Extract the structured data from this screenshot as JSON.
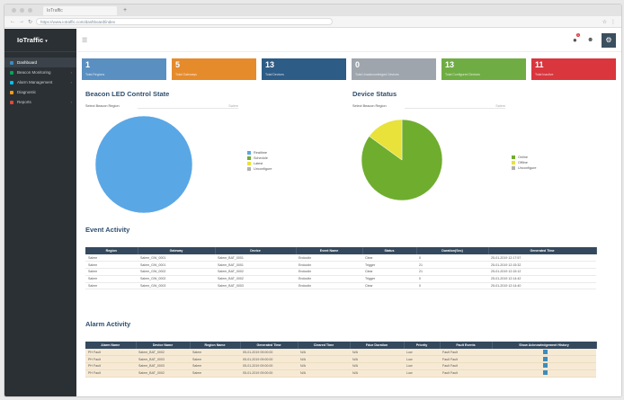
{
  "browser": {
    "tab_title": "IoTraffic",
    "url": "https://www.iotraffic.com/dashboard/index"
  },
  "sidebar": {
    "brand": "IoTraffic",
    "items": [
      {
        "label": "Dashboard",
        "icon": "dashboard-icon",
        "color": "#3c8dbc"
      },
      {
        "label": "Beacon Monitoring",
        "icon": "beacon-icon",
        "color": "#00a65a"
      },
      {
        "label": "Alarm Management",
        "icon": "alarm-icon",
        "color": "#00c0ef"
      },
      {
        "label": "Diagnostic",
        "icon": "diagnostic-icon",
        "color": "#f39c12"
      },
      {
        "label": "Reports",
        "icon": "report-icon",
        "color": "#dd4b39"
      }
    ]
  },
  "topbar": {
    "notification_count": "1"
  },
  "stats": [
    {
      "value": "1",
      "label": "Total Regions",
      "color": "#5a8fc1"
    },
    {
      "value": "5",
      "label": "Total Gateways",
      "color": "#e58b2c"
    },
    {
      "value": "13",
      "label": "Total Devices",
      "color": "#2d5c86"
    },
    {
      "value": "0",
      "label": "Total Unacknowledged Devices",
      "color": "#9ea5ad"
    },
    {
      "value": "13",
      "label": "Total Configured Devices",
      "color": "#6fad44"
    },
    {
      "value": "11",
      "label": "Total Inactive",
      "color": "#d9363e"
    }
  ],
  "beacon_chart": {
    "title": "Beacon LED Control State",
    "filter_label": "Select Beacon Region",
    "filter_value": "Salem",
    "legend": [
      {
        "label": "Realtime",
        "color": "#5aa7e6"
      },
      {
        "label": "Schedule",
        "color": "#6fad2f"
      },
      {
        "label": "Latest",
        "color": "#e8e23a"
      },
      {
        "label": "Unconfigure",
        "color": "#b0b0b0"
      }
    ]
  },
  "device_chart": {
    "title": "Device Status",
    "filter_label": "Select Beacon Region",
    "filter_value": "Salem",
    "legend": [
      {
        "label": "Online",
        "color": "#6fad2f"
      },
      {
        "label": "Offline",
        "color": "#e8e23a"
      },
      {
        "label": "Unconfigure",
        "color": "#b0b0b0"
      }
    ]
  },
  "chart_data": [
    {
      "type": "pie",
      "title": "Beacon LED Control State",
      "categories": [
        "Realtime",
        "Schedule",
        "Latest",
        "Unconfigure"
      ],
      "values": [
        100,
        0,
        0,
        0
      ]
    },
    {
      "type": "pie",
      "title": "Device Status",
      "categories": [
        "Online",
        "Offline",
        "Unconfigure"
      ],
      "values": [
        85,
        15,
        0
      ]
    }
  ],
  "event_activity": {
    "title": "Event Activity",
    "columns": [
      "Region",
      "Gateway",
      "Device",
      "Event Name",
      "Status",
      "Duration(Sec)",
      "Generated Time"
    ],
    "rows": [
      [
        "Salem",
        "Salem_GW_0001",
        "Salem_BAT_0001",
        "Endoutin",
        "Clear",
        "0",
        "25-01-2019 12:17:57"
      ],
      [
        "Salem",
        "Salem_GW_0001",
        "Salem_BAT_0001",
        "Endoutin",
        "Trigger",
        "21",
        "25-01-2019 12:15:32"
      ],
      [
        "Salem",
        "Salem_GW_0002",
        "Salem_BAT_0002",
        "Endoutin",
        "Clear",
        "21",
        "25-01-2019 12:15:12"
      ],
      [
        "Salem",
        "Salem_GW_0002",
        "Salem_BAT_0002",
        "Endoutin",
        "Trigger",
        "0",
        "25-01-2019 12:14:42"
      ],
      [
        "Salem",
        "Salem_GW_0003",
        "Salem_BAT_0003",
        "Endoutin",
        "Clear",
        "0",
        "25-01-2019 12:14:40"
      ]
    ]
  },
  "alarm_activity": {
    "title": "Alarm Activity",
    "columns": [
      "Alarm Name",
      "Device Name",
      "Region Name",
      "Generated Time",
      "Cleared Time",
      "Fdue Duration",
      "Priority",
      "Fault Events",
      "Show Acknowledgement History"
    ],
    "rows": [
      [
        "PH Fault",
        "Salem_BAT_0002",
        "Salem",
        "05-01-2019 09:00:00",
        "N/A",
        "N/A",
        "Low",
        "Fault Fault"
      ],
      [
        "PH Fault",
        "Salem_BAT_0003",
        "Salem",
        "05-01-2019 09:00:00",
        "N/A",
        "N/A",
        "Low",
        "Fault Fault"
      ],
      [
        "PH Fault",
        "Salem_BAT_0003",
        "Salem",
        "05-01-2019 09:00:00",
        "N/A",
        "N/A",
        "Low",
        "Fault Fault"
      ],
      [
        "PH Fault",
        "Salem_BAT_0002",
        "Salem",
        "05-01-2019 09:00:00",
        "N/A",
        "N/A",
        "Low",
        "Fault Fault"
      ]
    ]
  }
}
